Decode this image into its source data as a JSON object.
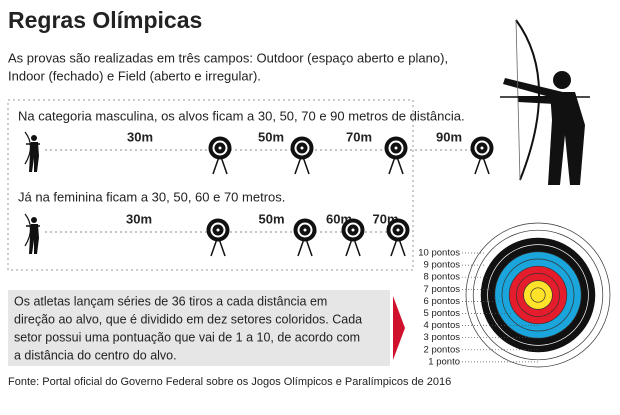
{
  "header": {
    "title": "Regras Olímpicas",
    "intro": [
      "As provas são realizadas em três campos: Outdoor (espaço aberto e plano),",
      "Indoor (fechado) e Field (aberto e irregular)."
    ]
  },
  "men": {
    "text": "Na categoria masculina, os alvos ficam a 30, 50, 70 e 90 metros de distância.",
    "distances": [
      "30m",
      "50m",
      "70m",
      "90m"
    ]
  },
  "women": {
    "text": "Já na feminina ficam a 30, 50, 60 e 70 metros.",
    "distances": [
      "30m",
      "50m",
      "60m",
      "70m"
    ]
  },
  "info": {
    "lines": [
      "Os atletas lançam séries de 36 tiros a cada distância em",
      "direção ao alvo, que é dividido em dez setores coloridos. Cada",
      "setor possui uma pontuação que vai de 1 a 10, de acordo com",
      "a distância do centro do alvo."
    ]
  },
  "target": {
    "labels": [
      "10 pontos",
      "9 pontos",
      "8 pontos",
      "7 pontos",
      "6 pontos",
      "5 pontos",
      "4 pontos",
      "3 pontos",
      "2 pontos",
      "1 ponto"
    ]
  },
  "source": "Fonte: Portal oficial do Governo Federal sobre os Jogos Olímpicos e Paralímpicos de 2016"
}
